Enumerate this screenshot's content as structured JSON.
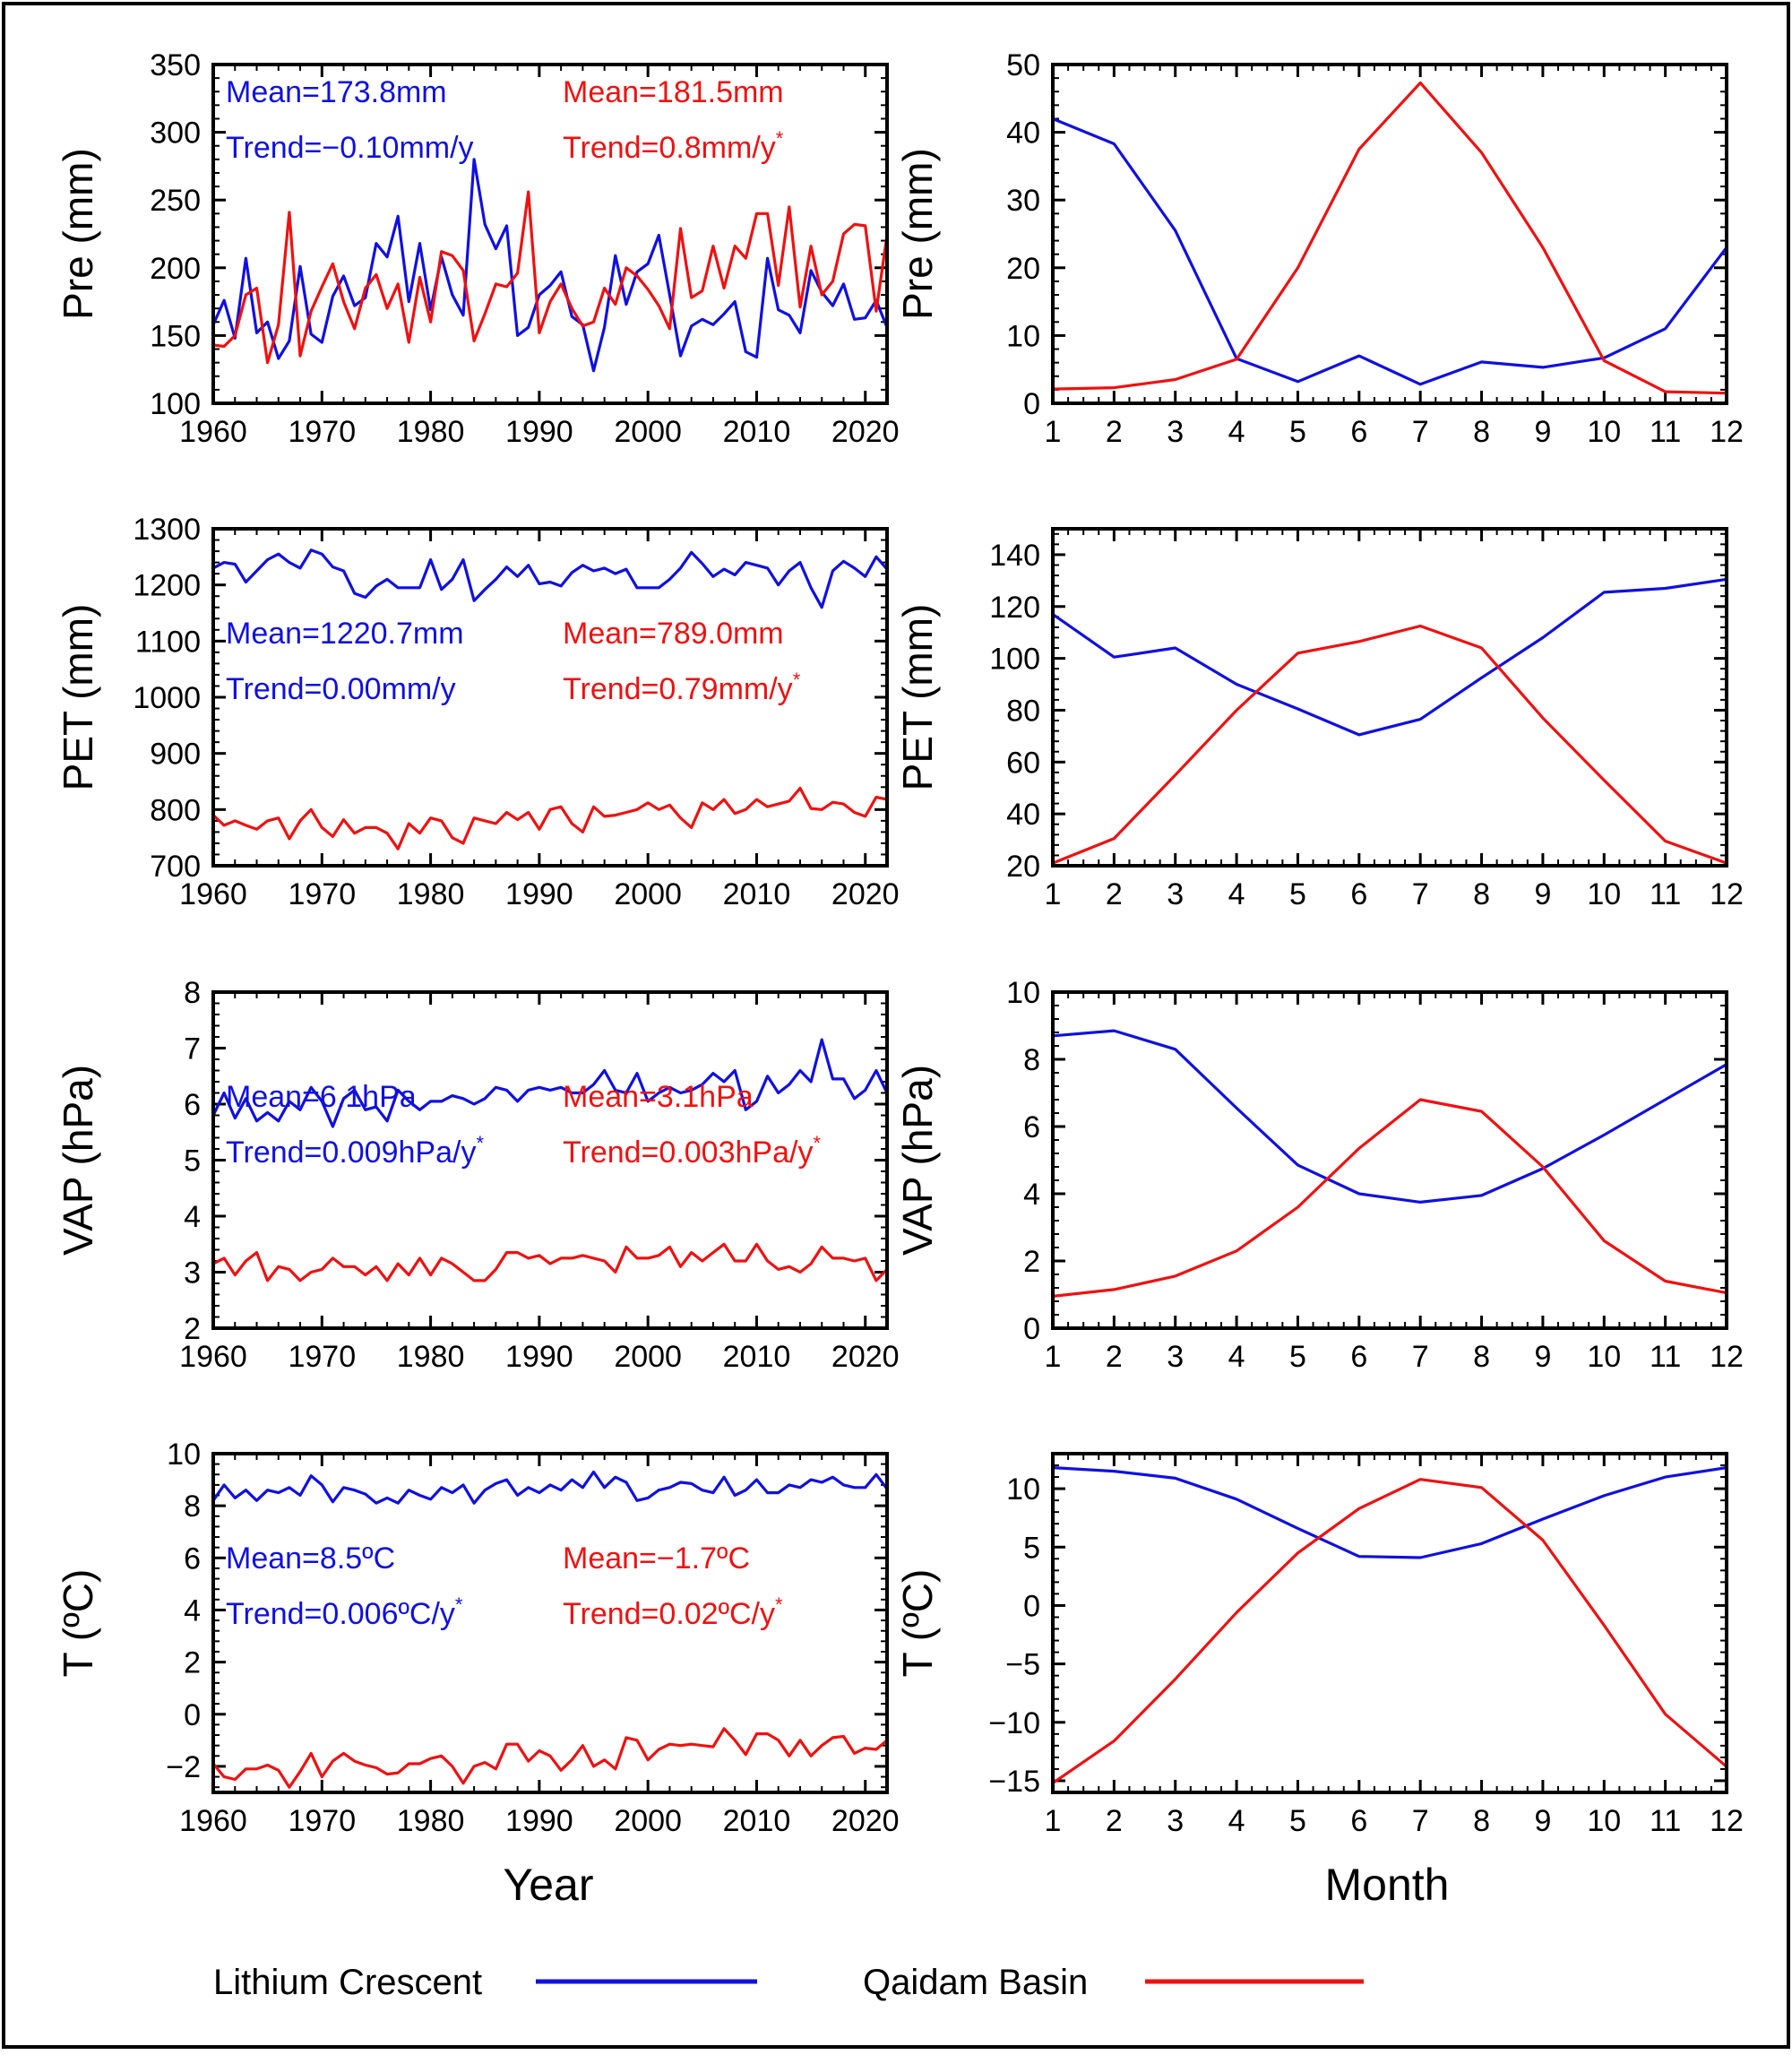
{
  "colors": {
    "lithium": "#1010e0",
    "qaidam": "#ee1111",
    "axis": "#000000"
  },
  "legend": {
    "series": [
      {
        "name": "Lithium Crescent",
        "color": "#1010e0"
      },
      {
        "name": "Qaidam Basin",
        "color": "#ee1111"
      }
    ]
  },
  "x_titles": {
    "annual": "Year",
    "monthly": "Month"
  },
  "chart_data": [
    {
      "id": "pre-annual",
      "type": "line",
      "ylabel": "Pre (mm)",
      "xlabel": "Year",
      "xlim": [
        1960,
        2022
      ],
      "ylim": [
        100,
        350
      ],
      "xticks": [
        1960,
        1970,
        1980,
        1990,
        2000,
        2010,
        2020
      ],
      "yticks": [
        100,
        150,
        200,
        250,
        300,
        350
      ],
      "annotations": {
        "lithium_mean": "Mean=173.8mm",
        "lithium_trend": "Trend=−0.10mm/y",
        "lithium_star": "",
        "qaidam_mean": "Mean=181.5mm",
        "qaidam_trend": "Trend=0.8mm/y",
        "qaidam_star": "*"
      },
      "x_start": 1960,
      "series": [
        {
          "name": "Lithium Crescent",
          "values": [
            158,
            176,
            148,
            207,
            152,
            160,
            133,
            146,
            201,
            151,
            145,
            179,
            194,
            172,
            178,
            218,
            208,
            238,
            175,
            218,
            169,
            208,
            180,
            165,
            280,
            232,
            214,
            231,
            150,
            156,
            180,
            187,
            197,
            164,
            158,
            124,
            156,
            209,
            173,
            197,
            203,
            224,
            180,
            135,
            157,
            162,
            158,
            166,
            175,
            138,
            134,
            207,
            169,
            165,
            152,
            198,
            182,
            172,
            188,
            162,
            163,
            176,
            156
          ]
        },
        {
          "name": "Qaidam Basin",
          "values": [
            143,
            142,
            150,
            180,
            185,
            130,
            158,
            241,
            135,
            168,
            186,
            203,
            175,
            155,
            185,
            195,
            170,
            188,
            145,
            193,
            160,
            212,
            209,
            198,
            146,
            166,
            188,
            186,
            196,
            256,
            152,
            175,
            188,
            170,
            157,
            160,
            185,
            173,
            200,
            194,
            184,
            172,
            155,
            229,
            178,
            183,
            216,
            185,
            216,
            207,
            240,
            240,
            187,
            245,
            171,
            216,
            180,
            190,
            225,
            232,
            231,
            168,
            224,
            180
          ]
        }
      ]
    },
    {
      "id": "pre-monthly",
      "type": "line",
      "ylabel": "Pre (mm)",
      "xlabel": "Month",
      "xlim": [
        1,
        12
      ],
      "ylim": [
        0,
        50
      ],
      "xticks": [
        1,
        2,
        3,
        4,
        5,
        6,
        7,
        8,
        9,
        10,
        11,
        12
      ],
      "yticks": [
        0,
        10,
        20,
        30,
        40,
        50
      ],
      "x": [
        1,
        2,
        3,
        4,
        5,
        6,
        7,
        8,
        9,
        10,
        11,
        12
      ],
      "series": [
        {
          "name": "Lithium Crescent",
          "values": [
            42,
            38.3,
            25.5,
            6.6,
            3.2,
            7,
            2.8,
            6.1,
            5.3,
            6.7,
            11,
            23
          ]
        },
        {
          "name": "Qaidam Basin",
          "values": [
            2.1,
            2.3,
            3.5,
            6.5,
            20,
            37.5,
            47.3,
            37,
            23,
            6.3,
            1.7,
            1.5
          ]
        }
      ]
    },
    {
      "id": "pet-annual",
      "type": "line",
      "ylabel": "PET (mm)",
      "xlabel": "Year",
      "xlim": [
        1960,
        2022
      ],
      "ylim": [
        700,
        1300
      ],
      "xticks": [
        1960,
        1970,
        1980,
        1990,
        2000,
        2010,
        2020
      ],
      "yticks": [
        700,
        800,
        900,
        1000,
        1100,
        1200,
        1300
      ],
      "annotations": {
        "lithium_mean": "Mean=1220.7mm",
        "lithium_trend": "Trend=0.00mm/y",
        "lithium_star": "",
        "qaidam_mean": "Mean=789.0mm",
        "qaidam_trend": "Trend=0.79mm/y",
        "qaidam_star": "*"
      },
      "x_start": 1960,
      "series": [
        {
          "name": "Lithium Crescent",
          "values": [
            1230,
            1240,
            1237,
            1205,
            1225,
            1245,
            1255,
            1240,
            1230,
            1262,
            1255,
            1232,
            1225,
            1185,
            1178,
            1198,
            1210,
            1195,
            1195,
            1195,
            1245,
            1192,
            1210,
            1245,
            1172,
            1192,
            1210,
            1232,
            1215,
            1235,
            1202,
            1205,
            1198,
            1222,
            1235,
            1225,
            1230,
            1220,
            1228,
            1195,
            1195,
            1195,
            1210,
            1230,
            1258,
            1238,
            1215,
            1228,
            1218,
            1240,
            1235,
            1230,
            1200,
            1225,
            1240,
            1195,
            1160,
            1225,
            1242,
            1230,
            1215,
            1250,
            1228,
            1258
          ]
        },
        {
          "name": "Qaidam Basin",
          "values": [
            790,
            772,
            780,
            772,
            765,
            780,
            785,
            748,
            780,
            800,
            768,
            752,
            782,
            758,
            768,
            768,
            758,
            730,
            775,
            758,
            785,
            780,
            750,
            740,
            785,
            780,
            775,
            795,
            782,
            795,
            765,
            800,
            805,
            775,
            760,
            805,
            788,
            790,
            795,
            800,
            812,
            800,
            808,
            785,
            768,
            812,
            800,
            818,
            793,
            800,
            818,
            805,
            810,
            815,
            838,
            802,
            800,
            813,
            810,
            795,
            788,
            822,
            818,
            828
          ]
        }
      ]
    },
    {
      "id": "pet-monthly",
      "type": "line",
      "ylabel": "PET (mm)",
      "xlabel": "Month",
      "xlim": [
        1,
        12
      ],
      "ylim": [
        20,
        150
      ],
      "xticks": [
        1,
        2,
        3,
        4,
        5,
        6,
        7,
        8,
        9,
        10,
        11,
        12
      ],
      "yticks": [
        20,
        40,
        60,
        80,
        100,
        120,
        140
      ],
      "x": [
        1,
        2,
        3,
        4,
        5,
        6,
        7,
        8,
        9,
        10,
        11,
        12
      ],
      "series": [
        {
          "name": "Lithium Crescent",
          "values": [
            117,
            100.5,
            104,
            90,
            80.5,
            70.5,
            76.5,
            92.5,
            108,
            125.5,
            127,
            130.5
          ]
        },
        {
          "name": "Qaidam Basin",
          "values": [
            21,
            30.5,
            55,
            80,
            102,
            106.5,
            112.5,
            104,
            77,
            53,
            29.5,
            21
          ]
        }
      ]
    },
    {
      "id": "vap-annual",
      "type": "line",
      "ylabel": "VAP (hPa)",
      "xlabel": "Year",
      "xlim": [
        1960,
        2022
      ],
      "ylim": [
        2,
        8
      ],
      "xticks": [
        1960,
        1970,
        1980,
        1990,
        2000,
        2010,
        2020
      ],
      "yticks": [
        2,
        3,
        4,
        5,
        6,
        7,
        8
      ],
      "annotations": {
        "lithium_mean": "Mean=6.1hPa",
        "lithium_trend": "Trend=0.009hPa/y",
        "lithium_star": "*",
        "qaidam_mean": "Mean=3.1hPa",
        "qaidam_trend": "Trend=0.003hPa/y",
        "qaidam_star": "*"
      },
      "x_start": 1960,
      "series": [
        {
          "name": "Lithium Crescent",
          "values": [
            5.8,
            6.2,
            5.75,
            6.1,
            5.7,
            5.85,
            5.7,
            6.05,
            5.9,
            6.3,
            6.05,
            5.6,
            6.1,
            6.25,
            5.9,
            5.95,
            5.7,
            6.25,
            6.05,
            5.9,
            6.05,
            6.05,
            6.15,
            6.1,
            6.0,
            6.1,
            6.3,
            6.25,
            6.05,
            6.25,
            6.3,
            6.25,
            6.3,
            6.2,
            6.2,
            6.35,
            6.6,
            6.25,
            6.2,
            6.55,
            6.05,
            6.2,
            6.3,
            6.2,
            6.25,
            6.35,
            6.55,
            6.4,
            6.6,
            5.9,
            6.05,
            6.5,
            6.2,
            6.35,
            6.6,
            6.4,
            7.15,
            6.45,
            6.45,
            6.1,
            6.25,
            6.6,
            6.2,
            5.9
          ]
        },
        {
          "name": "Qaidam Basin",
          "values": [
            3.15,
            3.25,
            2.95,
            3.2,
            3.35,
            2.85,
            3.1,
            3.05,
            2.85,
            3.0,
            3.05,
            3.25,
            3.1,
            3.1,
            2.95,
            3.1,
            2.85,
            3.15,
            2.95,
            3.25,
            2.95,
            3.25,
            3.15,
            3.0,
            2.85,
            2.85,
            3.05,
            3.35,
            3.35,
            3.25,
            3.3,
            3.15,
            3.25,
            3.25,
            3.3,
            3.25,
            3.2,
            3.0,
            3.45,
            3.25,
            3.25,
            3.3,
            3.45,
            3.1,
            3.35,
            3.2,
            3.35,
            3.5,
            3.2,
            3.2,
            3.5,
            3.2,
            3.05,
            3.1,
            3.0,
            3.15,
            3.45,
            3.25,
            3.25,
            3.2,
            3.25,
            2.85,
            3.05,
            3.1
          ]
        }
      ]
    },
    {
      "id": "vap-monthly",
      "type": "line",
      "ylabel": "VAP (hPa)",
      "xlabel": "Month",
      "xlim": [
        1,
        12
      ],
      "ylim": [
        0,
        10
      ],
      "xticks": [
        1,
        2,
        3,
        4,
        5,
        6,
        7,
        8,
        9,
        10,
        11,
        12
      ],
      "yticks": [
        0,
        2,
        4,
        6,
        8,
        10
      ],
      "x": [
        1,
        2,
        3,
        4,
        5,
        6,
        7,
        8,
        9,
        10,
        11,
        12
      ],
      "series": [
        {
          "name": "Lithium Crescent",
          "values": [
            8.7,
            8.85,
            8.3,
            6.55,
            4.85,
            4.0,
            3.75,
            3.95,
            4.75,
            5.75,
            6.8,
            7.85
          ]
        },
        {
          "name": "Qaidam Basin",
          "values": [
            0.95,
            1.15,
            1.55,
            2.3,
            3.6,
            5.35,
            6.8,
            6.45,
            4.8,
            2.6,
            1.4,
            1.05
          ]
        }
      ]
    },
    {
      "id": "t-annual",
      "type": "line",
      "ylabel": "T (ºC)",
      "xlabel": "Year",
      "xlim": [
        1960,
        2022
      ],
      "ylim": [
        -3,
        10
      ],
      "xticks": [
        1960,
        1970,
        1980,
        1990,
        2000,
        2010,
        2020
      ],
      "yticks": [
        -2,
        0,
        2,
        4,
        6,
        8,
        10
      ],
      "annotations": {
        "lithium_mean": "Mean=8.5ºC",
        "lithium_trend": "Trend=0.006ºC/y",
        "lithium_star": "*",
        "qaidam_mean": "Mean=−1.7ºC",
        "qaidam_trend": "Trend=0.02ºC/y",
        "qaidam_star": "*"
      },
      "x_start": 1960,
      "series": [
        {
          "name": "Lithium Crescent",
          "values": [
            8.2,
            8.8,
            8.3,
            8.6,
            8.2,
            8.6,
            8.5,
            8.7,
            8.4,
            9.15,
            8.8,
            8.15,
            8.7,
            8.6,
            8.45,
            8.1,
            8.3,
            8.1,
            8.6,
            8.4,
            8.25,
            8.7,
            8.5,
            8.8,
            8.1,
            8.6,
            8.85,
            9.0,
            8.4,
            8.7,
            8.5,
            8.8,
            8.6,
            9.0,
            8.7,
            9.3,
            8.7,
            9.1,
            8.9,
            8.2,
            8.3,
            8.6,
            8.7,
            8.9,
            8.85,
            8.6,
            8.5,
            9.1,
            8.4,
            8.6,
            9.0,
            8.5,
            8.5,
            8.8,
            8.7,
            9.0,
            8.9,
            9.1,
            8.8,
            8.7,
            8.7,
            9.2,
            8.65,
            8.5
          ]
        },
        {
          "name": "Qaidam Basin",
          "values": [
            -1.9,
            -2.4,
            -2.5,
            -2.1,
            -2.1,
            -1.95,
            -2.15,
            -2.8,
            -2.2,
            -1.5,
            -2.4,
            -1.8,
            -1.5,
            -1.8,
            -1.95,
            -2.05,
            -2.3,
            -2.25,
            -1.9,
            -1.9,
            -1.7,
            -1.6,
            -2.0,
            -2.65,
            -2.0,
            -1.85,
            -2.1,
            -1.15,
            -1.15,
            -1.8,
            -1.4,
            -1.6,
            -2.15,
            -1.75,
            -1.2,
            -2.0,
            -1.75,
            -2.1,
            -0.9,
            -1.0,
            -1.75,
            -1.35,
            -1.15,
            -1.2,
            -1.15,
            -1.2,
            -1.25,
            -0.55,
            -1.0,
            -1.55,
            -0.75,
            -0.75,
            -1.0,
            -1.6,
            -1.0,
            -1.6,
            -1.2,
            -0.9,
            -0.85,
            -1.5,
            -1.3,
            -1.35,
            -1.0,
            -1.0
          ]
        }
      ]
    },
    {
      "id": "t-monthly",
      "type": "line",
      "ylabel": "T (ºC)",
      "xlabel": "Month",
      "xlim": [
        1,
        12
      ],
      "ylim": [
        -16,
        13
      ],
      "xticks": [
        1,
        2,
        3,
        4,
        5,
        6,
        7,
        8,
        9,
        10,
        11,
        12
      ],
      "yticks": [
        -15,
        -10,
        -5,
        0,
        5,
        10
      ],
      "x": [
        1,
        2,
        3,
        4,
        5,
        6,
        7,
        8,
        9,
        10,
        11,
        12
      ],
      "series": [
        {
          "name": "Lithium Crescent",
          "values": [
            11.8,
            11.5,
            10.9,
            9.1,
            6.6,
            4.2,
            4.1,
            5.3,
            7.4,
            9.4,
            11.0,
            11.8
          ]
        },
        {
          "name": "Qaidam Basin",
          "values": [
            -15.2,
            -11.6,
            -6.3,
            -0.6,
            4.5,
            8.3,
            10.8,
            10.1,
            5.6,
            -1.7,
            -9.3,
            -13.8
          ]
        }
      ]
    }
  ]
}
